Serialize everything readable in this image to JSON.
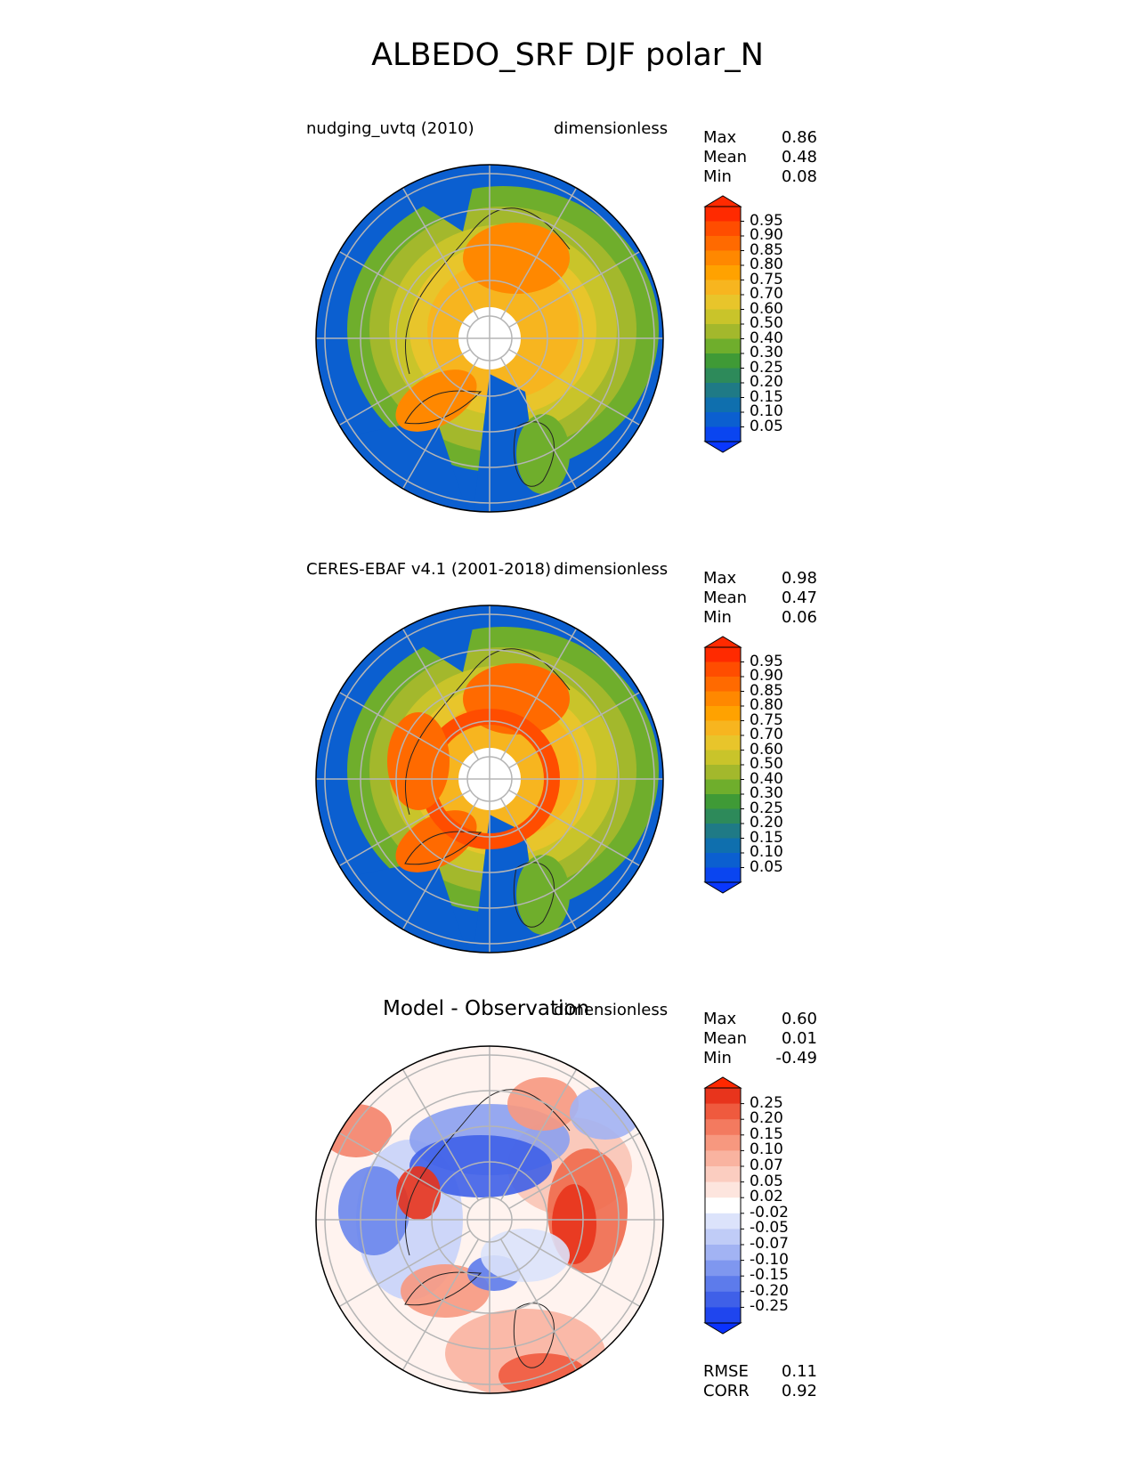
{
  "title": "ALBEDO_SRF DJF polar_N",
  "panels": [
    {
      "id": "test",
      "left_label": "nudging_uvtq (2010)",
      "center_label": "",
      "right_label": "dimensionless",
      "stats": [
        {
          "label": "Max",
          "value": "0.86"
        },
        {
          "label": "Mean",
          "value": "0.48"
        },
        {
          "label": "Min",
          "value": "0.08"
        }
      ],
      "extra_stats": [],
      "colorbar": {
        "ticks": [
          "0.95",
          "0.90",
          "0.85",
          "0.80",
          "0.75",
          "0.70",
          "0.60",
          "0.50",
          "0.40",
          "0.30",
          "0.25",
          "0.20",
          "0.15",
          "0.10",
          "0.05"
        ],
        "colors": [
          "#ff2a00",
          "#ff4d00",
          "#ff6a00",
          "#ff8800",
          "#ffa200",
          "#f7b51f",
          "#e8c52b",
          "#c9c42a",
          "#a3b82c",
          "#6fae2c",
          "#3f9a36",
          "#2d8a5a",
          "#1f7a86",
          "#0f6fae",
          "#0b5fd0",
          "#0a45f0"
        ]
      },
      "max_color": "#ff2a00",
      "min_color": "#0a37ff"
    },
    {
      "id": "reference",
      "left_label": "CERES-EBAF v4.1 (2001-2018)",
      "center_label": "",
      "right_label": "dimensionless",
      "stats": [
        {
          "label": "Max",
          "value": "0.98"
        },
        {
          "label": "Mean",
          "value": "0.47"
        },
        {
          "label": "Min",
          "value": "0.06"
        }
      ],
      "extra_stats": [],
      "colorbar": {
        "ticks": [
          "0.95",
          "0.90",
          "0.85",
          "0.80",
          "0.75",
          "0.70",
          "0.60",
          "0.50",
          "0.40",
          "0.30",
          "0.25",
          "0.20",
          "0.15",
          "0.10",
          "0.05"
        ],
        "colors": [
          "#ff2a00",
          "#ff4d00",
          "#ff6a00",
          "#ff8800",
          "#ffa200",
          "#f7b51f",
          "#e8c52b",
          "#c9c42a",
          "#a3b82c",
          "#6fae2c",
          "#3f9a36",
          "#2d8a5a",
          "#1f7a86",
          "#0f6fae",
          "#0b5fd0",
          "#0a45f0"
        ]
      },
      "max_color": "#ff2a00",
      "min_color": "#0a37ff"
    },
    {
      "id": "difference",
      "left_label": "",
      "center_label": "Model - Observation",
      "right_label": "dimensionless",
      "stats": [
        {
          "label": "Max",
          "value": "0.60"
        },
        {
          "label": "Mean",
          "value": "0.01"
        },
        {
          "label": "Min",
          "value": "-0.49"
        }
      ],
      "extra_stats": [
        {
          "label": "RMSE",
          "value": "0.11"
        },
        {
          "label": "CORR",
          "value": "0.92"
        }
      ],
      "colorbar": {
        "ticks": [
          "0.25",
          "0.20",
          "0.15",
          "0.10",
          "0.07",
          "0.05",
          "0.02",
          "-0.02",
          "-0.05",
          "-0.07",
          "-0.10",
          "-0.15",
          "-0.20",
          "-0.25"
        ],
        "colors": [
          "#e8341c",
          "#ef5a3e",
          "#f37a5f",
          "#f7987f",
          "#f9b3a0",
          "#fbcdc0",
          "#fde5de",
          "#ffffff",
          "#dce3fb",
          "#c0ccf7",
          "#a2b3f3",
          "#7f97ef",
          "#5d7beb",
          "#3f60e8",
          "#1f45ee"
        ]
      },
      "max_color": "#ff2800",
      "min_color": "#0a32ff"
    }
  ],
  "chart_data": [
    {
      "type": "heatmap",
      "projection": "north polar stereographic",
      "title": "nudging_uvtq (2010)",
      "units": "dimensionless",
      "stats": {
        "Max": 0.86,
        "Mean": 0.48,
        "Min": 0.08
      },
      "levels": [
        0.05,
        0.1,
        0.15,
        0.2,
        0.25,
        0.3,
        0.4,
        0.5,
        0.6,
        0.7,
        0.75,
        0.8,
        0.85,
        0.9,
        0.95
      ],
      "extend": "both"
    },
    {
      "type": "heatmap",
      "projection": "north polar stereographic",
      "title": "CERES-EBAF v4.1 (2001-2018)",
      "units": "dimensionless",
      "stats": {
        "Max": 0.98,
        "Mean": 0.47,
        "Min": 0.06
      },
      "levels": [
        0.05,
        0.1,
        0.15,
        0.2,
        0.25,
        0.3,
        0.4,
        0.5,
        0.6,
        0.7,
        0.75,
        0.8,
        0.85,
        0.9,
        0.95
      ],
      "extend": "both"
    },
    {
      "type": "heatmap",
      "projection": "north polar stereographic",
      "title": "Model - Observation",
      "units": "dimensionless",
      "stats": {
        "Max": 0.6,
        "Mean": 0.01,
        "Min": -0.49,
        "RMSE": 0.11,
        "CORR": 0.92
      },
      "levels": [
        -0.25,
        -0.2,
        -0.15,
        -0.1,
        -0.07,
        -0.05,
        -0.02,
        0.02,
        0.05,
        0.07,
        0.1,
        0.15,
        0.2,
        0.25
      ],
      "extend": "both"
    }
  ]
}
